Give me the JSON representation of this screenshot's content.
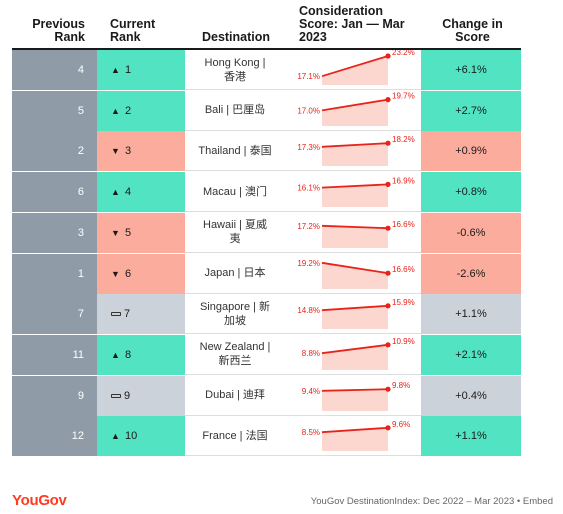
{
  "headers": {
    "previous_rank": [
      "Previous",
      "Rank"
    ],
    "current_rank": [
      "Current",
      "Rank"
    ],
    "destination": "Destination",
    "consideration": [
      "Consideration",
      "Score: Jan — Mar",
      "2023"
    ],
    "change": [
      "Change in",
      "Score"
    ]
  },
  "colors": {
    "up": "#52e3c3",
    "down": "#fcac9c",
    "same": "#ccd2da",
    "prev": "#8f9ca8",
    "line": "#e8231a",
    "area": "#fcd7cf"
  },
  "footer": {
    "logo": "YouGov",
    "source": "YouGov DestinationIndex: Dec 2022 – Mar 2023 • Embed"
  },
  "chart_data": {
    "type": "table",
    "columns": [
      "Previous Rank",
      "Current Rank",
      "Destination",
      "Consideration Score: Jan — Mar 2023",
      "Change in Score"
    ],
    "rows": [
      {
        "prev": "4",
        "curr": "1",
        "trend": "up",
        "dest": [
          "Hong Kong |",
          "香港"
        ],
        "start": 17.1,
        "end": 23.2,
        "start_label": "17.1%",
        "end_label": "23.2%",
        "change": "+6.1%"
      },
      {
        "prev": "5",
        "curr": "2",
        "trend": "up",
        "dest": [
          "Bali | 巴厘岛"
        ],
        "start": 17.0,
        "end": 19.7,
        "start_label": "17.0%",
        "end_label": "19.7%",
        "change": "+2.7%"
      },
      {
        "prev": "2",
        "curr": "3",
        "trend": "down",
        "dest": [
          "Thailand | 泰国"
        ],
        "start": 17.3,
        "end": 18.2,
        "start_label": "17.3%",
        "end_label": "18.2%",
        "change": "+0.9%"
      },
      {
        "prev": "6",
        "curr": "4",
        "trend": "up",
        "dest": [
          "Macau | 澳门"
        ],
        "start": 16.1,
        "end": 16.9,
        "start_label": "16.1%",
        "end_label": "16.9%",
        "change": "+0.8%"
      },
      {
        "prev": "3",
        "curr": "5",
        "trend": "down",
        "dest": [
          "Hawaii | 夏威",
          "夷"
        ],
        "start": 17.2,
        "end": 16.6,
        "start_label": "17.2%",
        "end_label": "16.6%",
        "change": "-0.6%"
      },
      {
        "prev": "1",
        "curr": "6",
        "trend": "down",
        "dest": [
          "Japan | 日本"
        ],
        "start": 19.2,
        "end": 16.6,
        "start_label": "19.2%",
        "end_label": "16.6%",
        "change": "-2.6%"
      },
      {
        "prev": "7",
        "curr": "7",
        "trend": "same",
        "dest": [
          "Singapore | 新",
          "加坡"
        ],
        "start": 14.8,
        "end": 15.9,
        "start_label": "14.8%",
        "end_label": "15.9%",
        "change": "+1.1%"
      },
      {
        "prev": "11",
        "curr": "8",
        "trend": "up",
        "dest": [
          "New Zealand |",
          "新西兰"
        ],
        "start": 8.8,
        "end": 10.9,
        "start_label": "8.8%",
        "end_label": "10.9%",
        "change": "+2.1%"
      },
      {
        "prev": "9",
        "curr": "9",
        "trend": "same",
        "dest": [
          "Dubai | 迪拜"
        ],
        "start": 9.4,
        "end": 9.8,
        "start_label": "9.4%",
        "end_label": "9.8%",
        "change": "+0.4%"
      },
      {
        "prev": "12",
        "curr": "10",
        "trend": "up",
        "dest": [
          "France | 法国"
        ],
        "start": 8.5,
        "end": 9.6,
        "start_label": "8.5%",
        "end_label": "9.6%",
        "change": "+1.1%"
      }
    ]
  }
}
